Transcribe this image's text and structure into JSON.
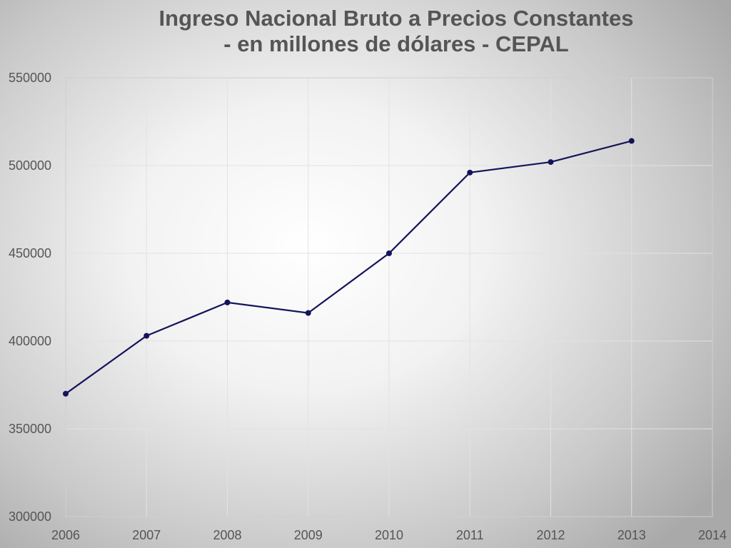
{
  "chart_data": {
    "type": "line",
    "title": [
      "Ingreso Nacional Bruto a Precios Constantes",
      "- en millones de dólares - CEPAL"
    ],
    "xlabel": "",
    "ylabel": "",
    "x_ticks": [
      2006,
      2007,
      2008,
      2009,
      2010,
      2011,
      2012,
      2013,
      2014
    ],
    "y_ticks": [
      300000,
      350000,
      400000,
      450000,
      500000,
      550000
    ],
    "xlim": [
      2006,
      2014
    ],
    "ylim": [
      300000,
      550000
    ],
    "grid": true,
    "legend": "none",
    "series": [
      {
        "color": "#14145a",
        "x": [
          2006,
          2007,
          2008,
          2009,
          2010,
          2011,
          2012,
          2013
        ],
        "y": [
          370000,
          403000,
          422000,
          416000,
          450000,
          496000,
          502000,
          514000
        ]
      }
    ]
  }
}
